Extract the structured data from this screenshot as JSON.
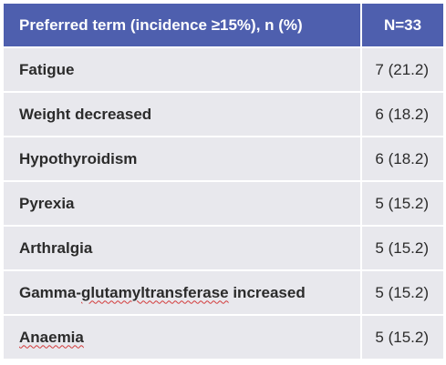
{
  "header": {
    "term_label": "Preferred term (incidence ≥15%), n (%)",
    "value_label": "N=33",
    "background_color": "#4e5fae"
  },
  "rows": [
    {
      "term": "Fatigue",
      "value": "7 (21.2)"
    },
    {
      "term": "Weight decreased",
      "value": "6 (18.2)"
    },
    {
      "term": "Hypothyroidism",
      "value": "6 (18.2)"
    },
    {
      "term": "Pyrexia",
      "value": "5 (15.2)"
    },
    {
      "term": "Arthralgia",
      "value": "5 (15.2)"
    },
    {
      "term_prefix": "Gamma-",
      "term_flagged": "glutamyltransferase",
      "term_suffix": " increased",
      "value": "5 (15.2)"
    },
    {
      "term_flagged": "Anaemia",
      "value": "5 (15.2)"
    }
  ],
  "colors": {
    "row_background": "#e8e8ed",
    "spellcheck_underline": "#d23a3a"
  }
}
